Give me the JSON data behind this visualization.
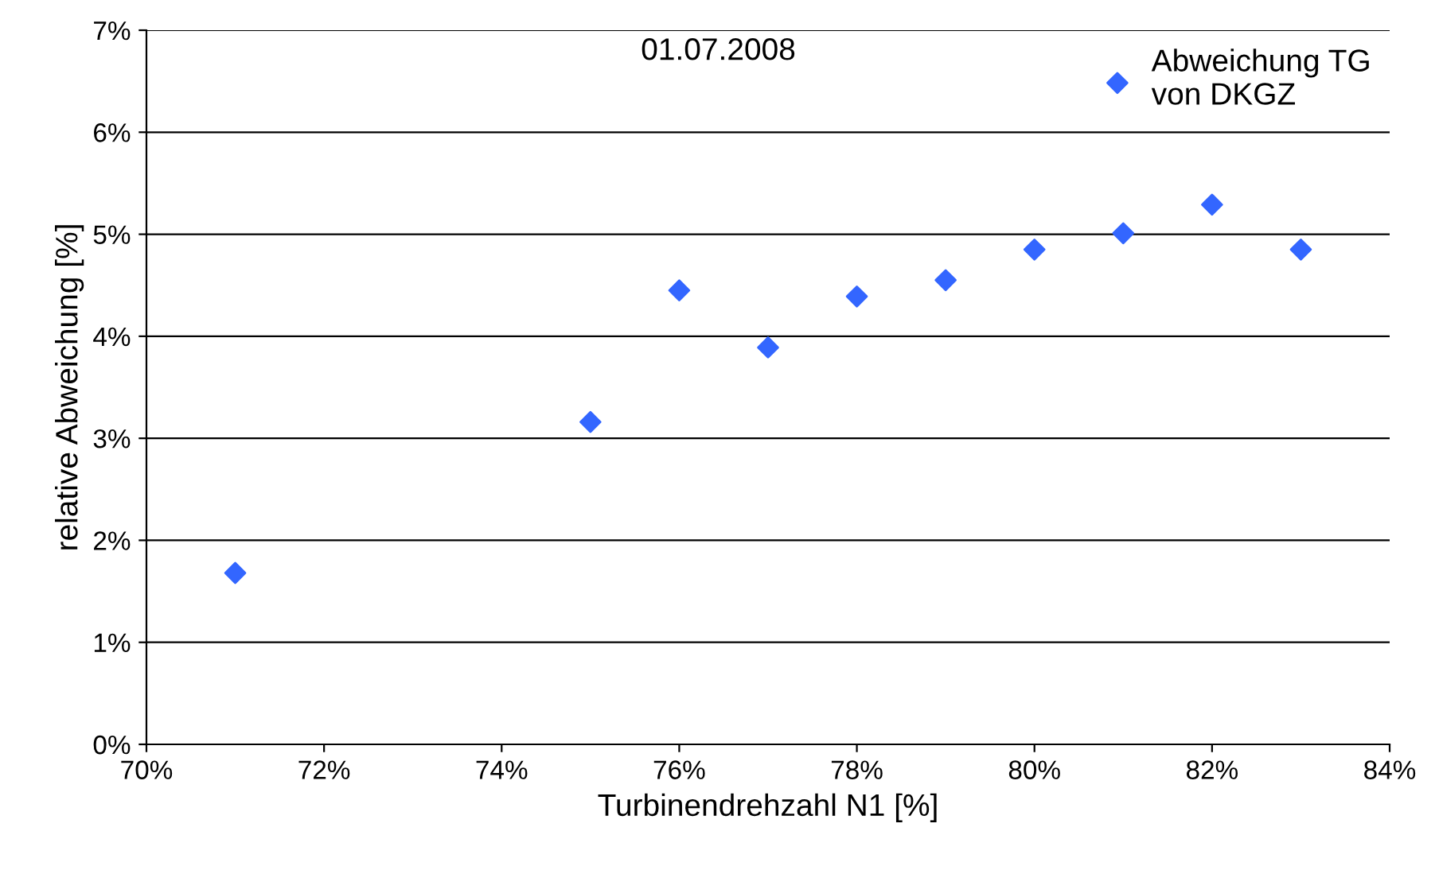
{
  "chart_data": {
    "type": "scatter",
    "xlabel": "Turbinendrehzahl N1 [%]",
    "ylabel": "relative Abweichung [%]",
    "annotations": [
      "01.07.2008"
    ],
    "x": [
      71,
      75,
      76,
      77,
      78,
      79,
      80,
      81,
      82,
      83
    ],
    "series": [
      {
        "name": "Abweichung TG\nvon DKGZ",
        "color": "#3366ff",
        "values": [
          1.68,
          3.16,
          4.45,
          3.89,
          4.39,
          4.55,
          4.85,
          5.01,
          5.29,
          4.85
        ]
      }
    ],
    "xlim": [
      70,
      84
    ],
    "xticks": [
      {
        "value": 70,
        "label": "70%"
      },
      {
        "value": 72,
        "label": "72%"
      },
      {
        "value": 74,
        "label": "74%"
      },
      {
        "value": 76,
        "label": "76%"
      },
      {
        "value": 78,
        "label": "78%"
      },
      {
        "value": 80,
        "label": "80%"
      },
      {
        "value": 82,
        "label": "82%"
      },
      {
        "value": 84,
        "label": "84%"
      }
    ],
    "ylim": [
      0,
      7
    ],
    "yticks": [
      {
        "value": 0,
        "label": "0%"
      },
      {
        "value": 1,
        "label": "1%"
      },
      {
        "value": 2,
        "label": "2%"
      },
      {
        "value": 3,
        "label": "3%"
      },
      {
        "value": 4,
        "label": "4%"
      },
      {
        "value": 5,
        "label": "5%"
      },
      {
        "value": 6,
        "label": "6%"
      },
      {
        "value": 7,
        "label": "7%"
      }
    ],
    "grid": "y",
    "legend": "top right",
    "marker": "diamond"
  }
}
